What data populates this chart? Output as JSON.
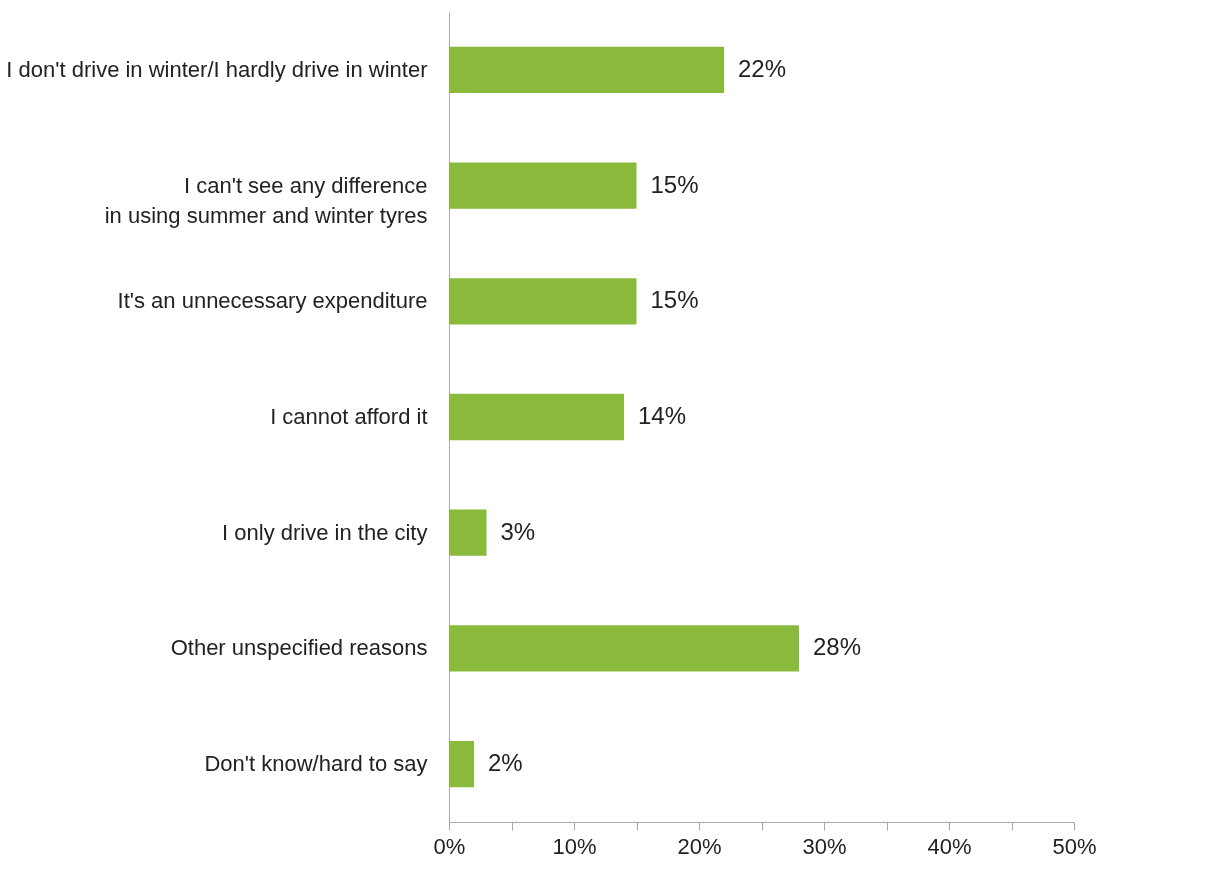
{
  "chart_data": {
    "type": "bar",
    "orientation": "horizontal",
    "categories": [
      "I don't drive in winter/I hardly drive in winter",
      "I can't see any difference\nin using summer and winter tyres",
      "It's an unnecessary expenditure",
      "I cannot afford it",
      "I only drive in the city",
      "Other unspecified reasons",
      "Don't know/hard to say"
    ],
    "values": [
      22,
      15,
      15,
      14,
      3,
      28,
      2
    ],
    "value_labels": [
      "22%",
      "15%",
      "15%",
      "14%",
      "3%",
      "28%",
      "2%"
    ],
    "color": "#8aba3b",
    "xlim": [
      0,
      50
    ],
    "xticks": [
      {
        "value": 0,
        "label": "0%"
      },
      {
        "value": 5,
        "label": null
      },
      {
        "value": 10,
        "label": "10%"
      },
      {
        "value": 15,
        "label": null
      },
      {
        "value": 20,
        "label": "20%"
      },
      {
        "value": 25,
        "label": null
      },
      {
        "value": 30,
        "label": "30%"
      },
      {
        "value": 35,
        "label": null
      },
      {
        "value": 40,
        "label": "40%"
      },
      {
        "value": 45,
        "label": null
      },
      {
        "value": 50,
        "label": "50%"
      }
    ],
    "grid": false
  }
}
